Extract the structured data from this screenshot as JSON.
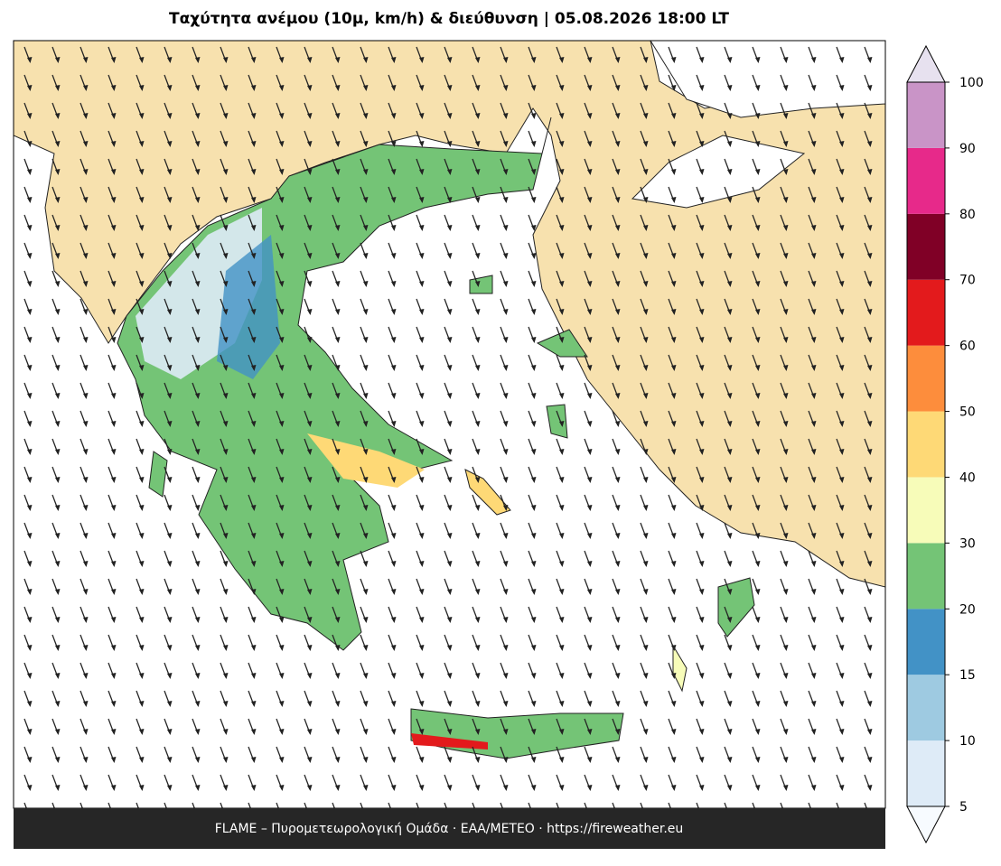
{
  "title": "Ταχύτητα ανέμου (10μ, km/h) & διεύθυνση  |  05.08.2026 18:00 LT",
  "footer": "FLAME – Πυρομετεωρολογική Ομάδα · ΕΑΑ/METEO · https://fireweather.eu",
  "colorbar": {
    "ticks": [
      5,
      10,
      15,
      20,
      30,
      40,
      50,
      60,
      70,
      80,
      90,
      100
    ],
    "colors": [
      "#deebf7",
      "#9ecae1",
      "#4292c6",
      "#74c476",
      "#f7fcb9",
      "#fed976",
      "#fd8d3c",
      "#e31a1c",
      "#800026",
      "#e7298a",
      "#c994c7"
    ],
    "under_color": "#f7fbff",
    "over_color": "#e7e1ef"
  }
}
